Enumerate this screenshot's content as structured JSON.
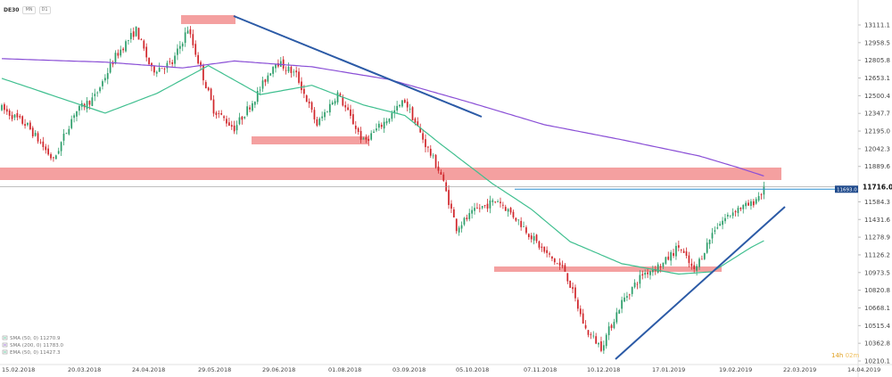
{
  "header": {
    "symbol": "DE30",
    "chip_period": "MN",
    "chip_interval": "D1"
  },
  "colors": {
    "bull": "#2e9e6b",
    "bear": "#d0262b",
    "zone": "#f08080",
    "trend": "#2b5aa6",
    "sma50": "#3fbf8f",
    "sma200": "#8a4fd6",
    "price_label_bg": "#1f4a8c",
    "hline": "#2b8fd1"
  },
  "chart_data": {
    "type": "candlestick",
    "y_axis": {
      "min": 10210.1,
      "max": 13111.1,
      "ticks": [
        "13111.1",
        "12958.5",
        "12805.8",
        "12653.1",
        "12500.4",
        "12347.7",
        "12195.0",
        "12042.3",
        "11889.6",
        "11584.3",
        "11431.6",
        "11278.9",
        "11126.2",
        "10973.5",
        "10820.8",
        "10668.1",
        "10515.4",
        "10362.8",
        "10210.1"
      ]
    },
    "x_axis": {
      "ticks": [
        "15.02.2018",
        "20.03.2018",
        "24.04.2018",
        "29.05.2018",
        "29.06.2018",
        "01.08.2018",
        "03.09.2018",
        "05.10.2018",
        "07.11.2018",
        "10.12.2018",
        "17.01.2019",
        "19.02.2019",
        "22.03.2019",
        "14.04.2019"
      ]
    },
    "last_price": "11716.0",
    "level_label": "11693.0",
    "countdown": {
      "hours": "14h",
      "minutes": "02m"
    },
    "legend": [
      "SMA (50, 0) 11270.9",
      "SMA (200, 0) 11783.0",
      "EMA (50, 0) 11427.3"
    ],
    "anchor_prices": [
      [
        0,
        12390
      ],
      [
        10,
        12240
      ],
      [
        20,
        11940
      ],
      [
        28,
        12350
      ],
      [
        36,
        12490
      ],
      [
        44,
        12840
      ],
      [
        52,
        13070
      ],
      [
        58,
        12720
      ],
      [
        66,
        12780
      ],
      [
        72,
        13080
      ],
      [
        82,
        12380
      ],
      [
        90,
        12220
      ],
      [
        98,
        12480
      ],
      [
        106,
        12800
      ],
      [
        114,
        12680
      ],
      [
        122,
        12250
      ],
      [
        130,
        12520
      ],
      [
        140,
        12100
      ],
      [
        148,
        12270
      ],
      [
        156,
        12460
      ],
      [
        164,
        12080
      ],
      [
        170,
        11820
      ],
      [
        176,
        11360
      ],
      [
        184,
        11520
      ],
      [
        192,
        11600
      ],
      [
        200,
        11420
      ],
      [
        210,
        11150
      ],
      [
        218,
        10990
      ],
      [
        226,
        10480
      ],
      [
        232,
        10330
      ],
      [
        240,
        10720
      ],
      [
        248,
        10960
      ],
      [
        256,
        11050
      ],
      [
        262,
        11200
      ],
      [
        268,
        10980
      ],
      [
        276,
        11360
      ],
      [
        284,
        11520
      ],
      [
        290,
        11560
      ],
      [
        296,
        11716
      ]
    ],
    "sma50": [
      [
        0,
        12650
      ],
      [
        40,
        12350
      ],
      [
        60,
        12520
      ],
      [
        80,
        12760
      ],
      [
        100,
        12510
      ],
      [
        120,
        12590
      ],
      [
        140,
        12420
      ],
      [
        156,
        12330
      ],
      [
        170,
        12080
      ],
      [
        190,
        11740
      ],
      [
        205,
        11520
      ],
      [
        220,
        11240
      ],
      [
        240,
        11050
      ],
      [
        262,
        10960
      ],
      [
        275,
        10980
      ],
      [
        290,
        11190
      ],
      [
        296,
        11260
      ]
    ],
    "sma200": [
      [
        0,
        12820
      ],
      [
        40,
        12790
      ],
      [
        70,
        12740
      ],
      [
        90,
        12800
      ],
      [
        120,
        12750
      ],
      [
        150,
        12640
      ],
      [
        180,
        12450
      ],
      [
        210,
        12250
      ],
      [
        240,
        12120
      ],
      [
        270,
        11980
      ],
      [
        285,
        11880
      ],
      [
        296,
        11800
      ]
    ]
  }
}
